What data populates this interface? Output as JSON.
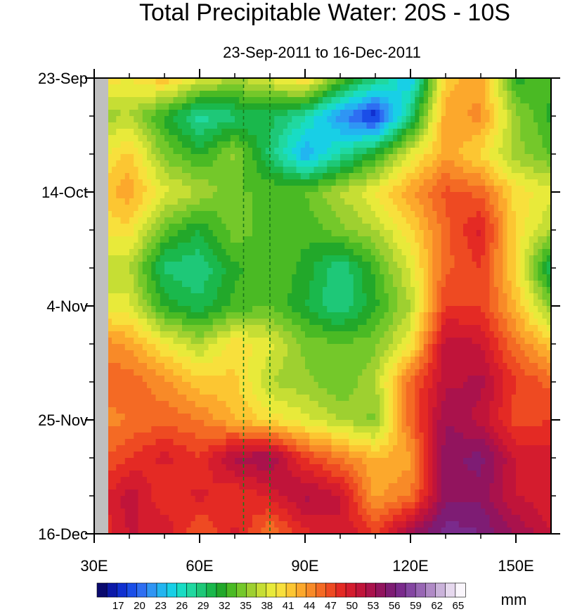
{
  "chart_data": {
    "type": "heatmap",
    "title": "Total Precipitable Water: 20S - 10S",
    "subtitle": "23-Sep-2011 to 16-Dec-2011",
    "x_ticks": [
      {
        "value": 30,
        "label": "30E"
      },
      {
        "value": 60,
        "label": "60E"
      },
      {
        "value": 90,
        "label": "90E"
      },
      {
        "value": 120,
        "label": "120E"
      },
      {
        "value": 150,
        "label": "150E"
      }
    ],
    "xlim": [
      30,
      160
    ],
    "y_ticks": [
      {
        "value": 0,
        "label": "23-Sep"
      },
      {
        "value": 21,
        "label": "14-Oct"
      },
      {
        "value": 42,
        "label": "4-Nov"
      },
      {
        "value": 63,
        "label": "25-Nov"
      },
      {
        "value": 84,
        "label": "16-Dec"
      }
    ],
    "ylim": [
      0,
      84
    ],
    "y_minor_step": 7,
    "reference_lines_lon": [
      72.5,
      80
    ],
    "reference_line_color": "#1a7a1a",
    "missing_color": "#bfbfbf",
    "colorbar": {
      "units": "mm",
      "min": 14,
      "max": 66,
      "step": 1.5,
      "labels": [
        17,
        20,
        23,
        26,
        29,
        32,
        35,
        38,
        41,
        44,
        47,
        50,
        53,
        56,
        59,
        62,
        65
      ],
      "colors": [
        "#0a0a6e",
        "#0c19a8",
        "#1030d0",
        "#1a4ee8",
        "#2e6ef2",
        "#2f95f4",
        "#22b5f0",
        "#18cfe6",
        "#18dcc4",
        "#20d8a0",
        "#1ec878",
        "#1ab84c",
        "#22a82a",
        "#4aba24",
        "#74c82a",
        "#9ed030",
        "#c6de34",
        "#e8ea3a",
        "#f8e03c",
        "#fcc632",
        "#fca82c",
        "#f88a28",
        "#f46a24",
        "#ee4a22",
        "#e42a24",
        "#d41c2e",
        "#c0143a",
        "#aa124c",
        "#92145e",
        "#7e1c74",
        "#7a2a8c",
        "#8446a2",
        "#9866b4",
        "#b08ac6",
        "#cab2da",
        "#e6d8ee",
        "#faf6fc"
      ]
    },
    "grid_points": {
      "lon": [
        30,
        40,
        50,
        60,
        70,
        80,
        90,
        100,
        110,
        120,
        130,
        140,
        150,
        160
      ],
      "day": [
        0,
        7,
        14,
        21,
        28,
        35,
        42,
        49,
        56,
        63,
        70,
        77,
        84
      ],
      "values_mm": [
        [
          42,
          41,
          44,
          40,
          38,
          40,
          43,
          35,
          30,
          24,
          43,
          45,
          33,
          34
        ],
        [
          37,
          38,
          33,
          28,
          30,
          31,
          28,
          22,
          17,
          30,
          45,
          46,
          37,
          33
        ],
        [
          40,
          43,
          36,
          33,
          37,
          30,
          23,
          28,
          33,
          40,
          45,
          42,
          37,
          35
        ],
        [
          43,
          45,
          40,
          38,
          35,
          35,
          35,
          38,
          41,
          45,
          49,
          48,
          42,
          40
        ],
        [
          41,
          42,
          35,
          32,
          36,
          34,
          34,
          36,
          38,
          42,
          48,
          52,
          42,
          38
        ],
        [
          39,
          38,
          30,
          29,
          33,
          35,
          33,
          29,
          34,
          40,
          48,
          50,
          42,
          30
        ],
        [
          40,
          40,
          33,
          31,
          34,
          35,
          32,
          29,
          33,
          38,
          50,
          50,
          44,
          36
        ],
        [
          47,
          45,
          41,
          38,
          42,
          40,
          36,
          35,
          36,
          41,
          54,
          53,
          47,
          43
        ],
        [
          48,
          48,
          46,
          43,
          43,
          38,
          37,
          35,
          38,
          48,
          54,
          55,
          50,
          48
        ],
        [
          46,
          47,
          48,
          47,
          44,
          42,
          40,
          38,
          36,
          48,
          56,
          54,
          49,
          50
        ],
        [
          48,
          50,
          52,
          50,
          55,
          56,
          50,
          47,
          44,
          45,
          57,
          58,
          53,
          52
        ],
        [
          50,
          54,
          50,
          52,
          50,
          52,
          55,
          53,
          45,
          47,
          57,
          57,
          53,
          52
        ],
        [
          50,
          53,
          53,
          48,
          52,
          47,
          51,
          53,
          50,
          56,
          60,
          59,
          56,
          53
        ]
      ]
    }
  }
}
